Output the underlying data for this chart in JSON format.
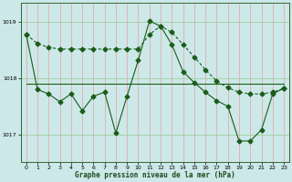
{
  "background_color": "#cce8e8",
  "grid_color_v": "#e8a0a0",
  "grid_color_h": "#a0d0a0",
  "line_color": "#1a5c1a",
  "xlim": [
    -0.5,
    23.5
  ],
  "ylim": [
    1016.5,
    1019.35
  ],
  "yticks": [
    1017,
    1018,
    1019
  ],
  "xticks": [
    0,
    1,
    2,
    3,
    4,
    5,
    6,
    7,
    8,
    9,
    10,
    11,
    12,
    13,
    14,
    15,
    16,
    17,
    18,
    19,
    20,
    21,
    22,
    23
  ],
  "xlabel": "Graphe pression niveau de la mer (hPa)",
  "line1_x": [
    0,
    1,
    2,
    3,
    4,
    5,
    6,
    7,
    8,
    9,
    10,
    11,
    12,
    13,
    14,
    15,
    16,
    17,
    18,
    19,
    20,
    21,
    22,
    23
  ],
  "line1_y": [
    1018.78,
    1018.62,
    1018.55,
    1018.52,
    1018.52,
    1018.52,
    1018.52,
    1018.52,
    1018.52,
    1018.52,
    1018.52,
    1018.78,
    1018.93,
    1018.82,
    1018.6,
    1018.38,
    1018.15,
    1017.95,
    1017.83,
    1017.75,
    1017.72,
    1017.72,
    1017.75,
    1017.82
  ],
  "line2_x": [
    0,
    1,
    2,
    3,
    4,
    5,
    6,
    7,
    8,
    9,
    10,
    11,
    12,
    13,
    14,
    15,
    16,
    17,
    18,
    19,
    20,
    21,
    22,
    23
  ],
  "line2_y": [
    1017.9,
    1017.9,
    1017.9,
    1017.9,
    1017.9,
    1017.9,
    1017.9,
    1017.9,
    1017.9,
    1017.9,
    1017.9,
    1017.9,
    1017.9,
    1017.9,
    1017.9,
    1017.9,
    1017.9,
    1017.9,
    1017.9,
    1017.9,
    1017.9,
    1017.9,
    1017.9,
    1017.9
  ],
  "line3_x": [
    0,
    1,
    2,
    3,
    4,
    5,
    6,
    7,
    8,
    9,
    10,
    11,
    12,
    13,
    14,
    15,
    16,
    17,
    18,
    19,
    20,
    21,
    22,
    23
  ],
  "line3_y": [
    1018.78,
    1017.8,
    1017.72,
    1017.58,
    1017.72,
    1017.42,
    1017.68,
    1017.75,
    1017.02,
    1017.68,
    1018.32,
    1019.02,
    1018.93,
    1018.6,
    1018.12,
    1017.92,
    1017.75,
    1017.6,
    1017.5,
    1016.88,
    1016.88,
    1017.08,
    1017.72,
    1017.82
  ]
}
